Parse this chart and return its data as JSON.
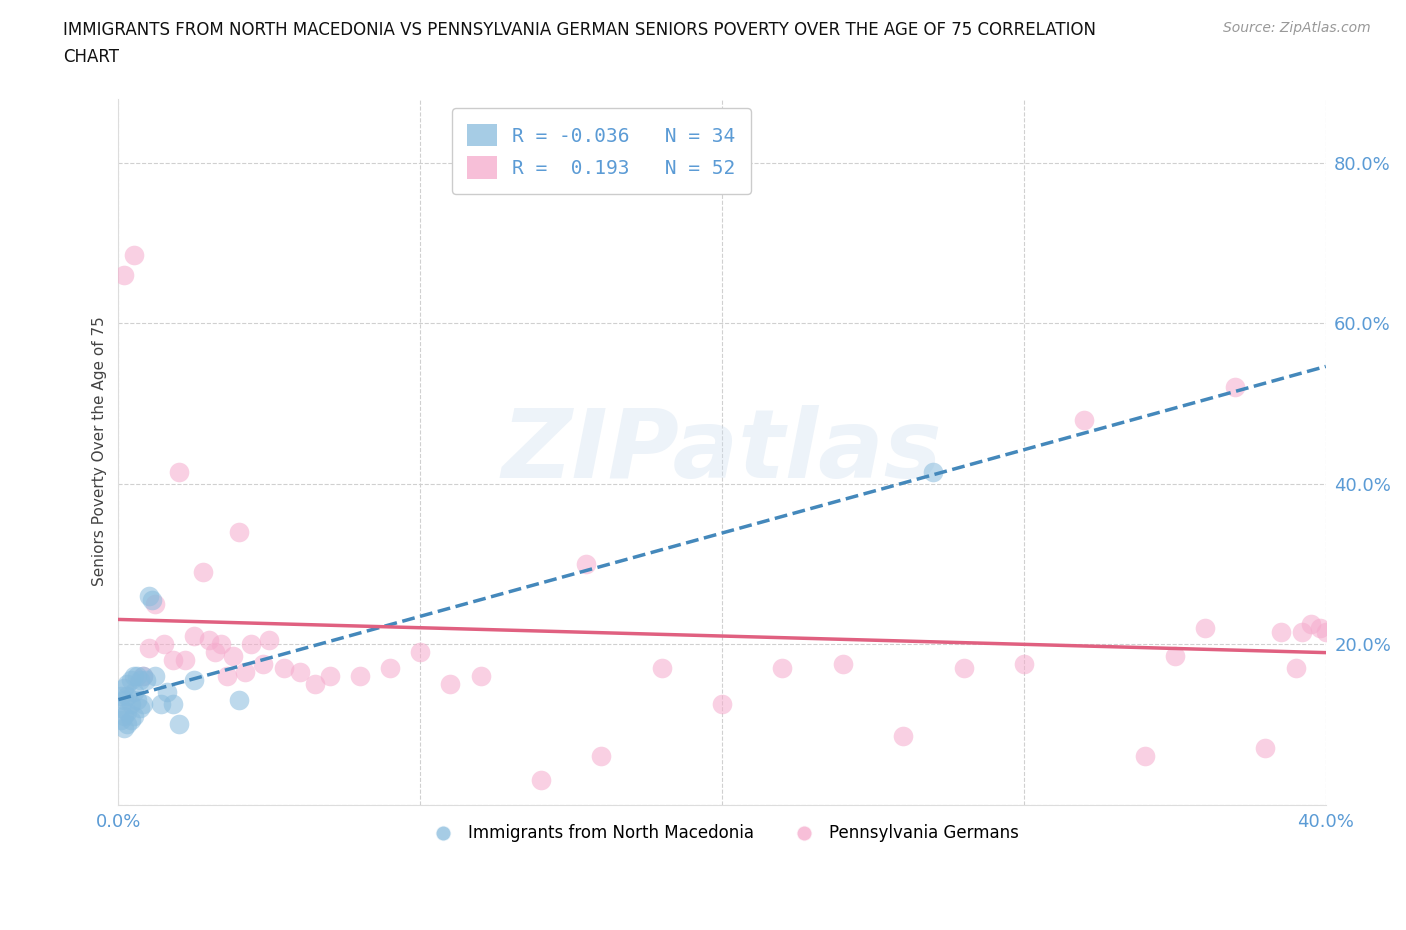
{
  "title_line1": "IMMIGRANTS FROM NORTH MACEDONIA VS PENNSYLVANIA GERMAN SENIORS POVERTY OVER THE AGE OF 75 CORRELATION",
  "title_line2": "CHART",
  "source": "Source: ZipAtlas.com",
  "ylabel": "Seniors Poverty Over the Age of 75",
  "background_color": "#ffffff",
  "grid_color": "#d0d0d0",
  "blue_color": "#88bbdd",
  "pink_color": "#f5aacc",
  "blue_line_color": "#4488bb",
  "pink_line_color": "#e06080",
  "legend_R_blue": "-0.036",
  "legend_N_blue": "34",
  "legend_R_pink": "0.193",
  "legend_N_pink": "52",
  "watermark": "ZIPatlas",
  "legend_label_blue": "Immigrants from North Macedonia",
  "legend_label_pink": "Pennsylvania Germans",
  "blue_x": [
    0.001,
    0.001,
    0.001,
    0.002,
    0.002,
    0.002,
    0.002,
    0.003,
    0.003,
    0.003,
    0.003,
    0.004,
    0.004,
    0.004,
    0.005,
    0.005,
    0.005,
    0.006,
    0.006,
    0.007,
    0.007,
    0.008,
    0.008,
    0.009,
    0.01,
    0.011,
    0.012,
    0.014,
    0.016,
    0.018,
    0.02,
    0.025,
    0.04,
    0.27
  ],
  "blue_y": [
    0.135,
    0.12,
    0.105,
    0.145,
    0.13,
    0.11,
    0.095,
    0.15,
    0.135,
    0.115,
    0.1,
    0.155,
    0.125,
    0.105,
    0.16,
    0.14,
    0.11,
    0.16,
    0.13,
    0.155,
    0.12,
    0.16,
    0.125,
    0.155,
    0.26,
    0.255,
    0.16,
    0.125,
    0.14,
    0.125,
    0.1,
    0.155,
    0.13,
    0.415
  ],
  "pink_x": [
    0.002,
    0.005,
    0.008,
    0.01,
    0.012,
    0.015,
    0.018,
    0.02,
    0.022,
    0.025,
    0.028,
    0.03,
    0.032,
    0.034,
    0.036,
    0.038,
    0.04,
    0.042,
    0.044,
    0.048,
    0.05,
    0.055,
    0.06,
    0.065,
    0.07,
    0.08,
    0.09,
    0.1,
    0.11,
    0.12,
    0.14,
    0.155,
    0.16,
    0.18,
    0.2,
    0.22,
    0.24,
    0.26,
    0.28,
    0.3,
    0.32,
    0.34,
    0.35,
    0.36,
    0.37,
    0.38,
    0.385,
    0.39,
    0.392,
    0.395,
    0.398,
    0.4
  ],
  "pink_y": [
    0.66,
    0.685,
    0.16,
    0.195,
    0.25,
    0.2,
    0.18,
    0.415,
    0.18,
    0.21,
    0.29,
    0.205,
    0.19,
    0.2,
    0.16,
    0.185,
    0.34,
    0.165,
    0.2,
    0.175,
    0.205,
    0.17,
    0.165,
    0.15,
    0.16,
    0.16,
    0.17,
    0.19,
    0.15,
    0.16,
    0.03,
    0.3,
    0.06,
    0.17,
    0.125,
    0.17,
    0.175,
    0.085,
    0.17,
    0.175,
    0.48,
    0.06,
    0.185,
    0.22,
    0.52,
    0.07,
    0.215,
    0.17,
    0.215,
    0.225,
    0.22,
    0.215
  ]
}
